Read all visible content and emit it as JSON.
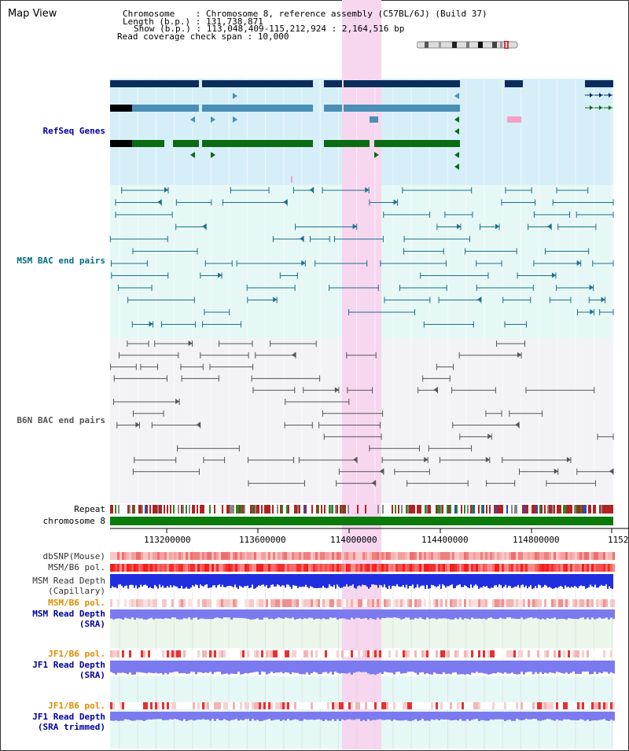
{
  "view": {
    "title": "Map View",
    "chromosome_line": "Chromosome    : Chromosome 8, reference assembly (C57BL/6J) (Build 37)",
    "length_line": "Length (b.p.) : 131,738,871",
    "show_line": "Show (b.p.) : 113,048,409-115,212,924 : 2,164,516 bp",
    "coverage_line": "Read coverage check span : 10,000"
  },
  "colors": {
    "refseq_bg": "#d6eef8",
    "msm_bac_bg": "#e6f8f6",
    "b6n_bac_bg": "#f3f3f7",
    "highlight": "#f7d6ef",
    "refseq_dark": "#0b2d5c",
    "refseq_mid": "#4a8fb5",
    "refseq_green": "#0a6b13",
    "chromosome": "#0a7a0a",
    "msm_pair": "#1c6f8a",
    "b6n_pair": "#555555",
    "label_blue": "#0000a0",
    "label_teal": "#006b80",
    "label_orange": "#e08a00",
    "depth_blue": "#1f2fe0",
    "depth_light": "#7b7bef"
  },
  "tracks": {
    "refseq": "RefSeq Genes",
    "msm_bac": "MSM BAC end pairs",
    "b6n_bac": "B6N BAC end pairs",
    "repeat": "Repeat",
    "chromosome": "chromosome 8",
    "dbsnp": "dbSNP(Mouse)",
    "msm_b6_pol_1": "MSM/B6 pol.",
    "msm_read_depth_cap_1": "MSM Read Depth",
    "msm_read_depth_cap_2": "(Capillary)",
    "msm_b6_pol_2": "MSM/B6 pol.",
    "msm_read_depth_sra_1": "MSM Read Depth",
    "msm_read_depth_sra_2": "(SRA)",
    "jf1_b6_pol_1": "JF1/B6 pol.",
    "jf1_read_depth_1": "JF1 Read Depth",
    "jf1_read_depth_2": "(SRA)",
    "jf1_b6_pol_2": "JF1/B6 pol.",
    "jf1_read_depth_trim_1": "JF1 Read Depth",
    "jf1_read_depth_trim_2": "(SRA trimmed)"
  },
  "axis": {
    "ticks": [
      "113200000",
      "113600000",
      "114000000",
      "114400000",
      "114800000",
      "1152"
    ]
  }
}
